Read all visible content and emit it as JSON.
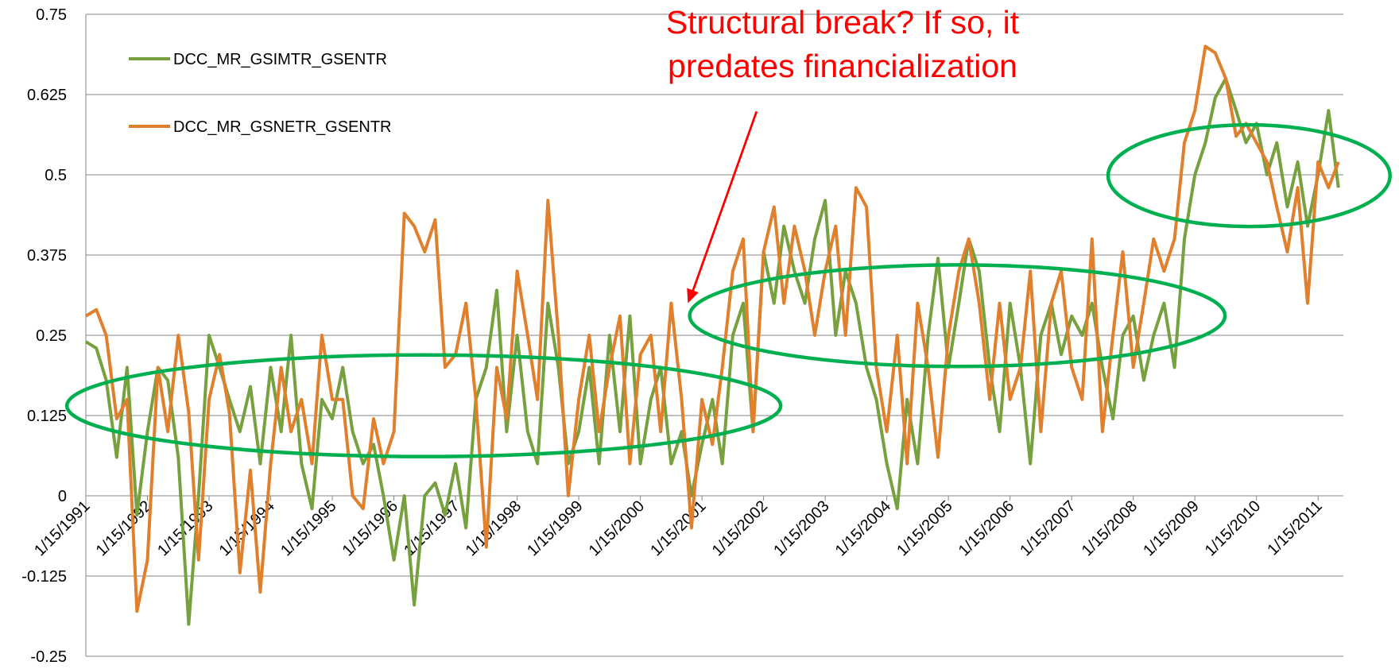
{
  "chart_data": {
    "type": "line",
    "annotation": [
      "Structural break? If so, it",
      "predates financialization"
    ],
    "x": [
      1991.04,
      1991.21,
      1991.37,
      1991.54,
      1991.71,
      1991.87,
      1992.04,
      1992.21,
      1992.37,
      1992.54,
      1992.71,
      1992.87,
      1993.04,
      1993.21,
      1993.37,
      1993.54,
      1993.71,
      1993.87,
      1994.04,
      1994.21,
      1994.37,
      1994.54,
      1994.71,
      1994.87,
      1995.04,
      1995.21,
      1995.37,
      1995.54,
      1995.71,
      1995.87,
      1996.04,
      1996.21,
      1996.37,
      1996.54,
      1996.71,
      1996.87,
      1997.04,
      1997.21,
      1997.37,
      1997.54,
      1997.71,
      1997.87,
      1998.04,
      1998.21,
      1998.37,
      1998.54,
      1998.71,
      1998.87,
      1999.04,
      1999.21,
      1999.37,
      1999.54,
      1999.71,
      1999.87,
      2000.04,
      2000.21,
      2000.37,
      2000.54,
      2000.71,
      2000.87,
      2001.04,
      2001.21,
      2001.37,
      2001.54,
      2001.71,
      2001.87,
      2002.04,
      2002.21,
      2002.37,
      2002.54,
      2002.71,
      2002.87,
      2003.04,
      2003.21,
      2003.37,
      2003.54,
      2003.71,
      2003.87,
      2004.04,
      2004.21,
      2004.37,
      2004.54,
      2004.71,
      2004.87,
      2005.04,
      2005.21,
      2005.37,
      2005.54,
      2005.71,
      2005.87,
      2006.04,
      2006.21,
      2006.37,
      2006.54,
      2006.71,
      2006.87,
      2007.04,
      2007.21,
      2007.37,
      2007.54,
      2007.71,
      2007.87,
      2008.04,
      2008.21,
      2008.37,
      2008.54,
      2008.71,
      2008.87,
      2009.04,
      2009.21,
      2009.37,
      2009.54,
      2009.71,
      2009.87,
      2010.04,
      2010.21,
      2010.37,
      2010.54,
      2010.71,
      2010.87,
      2011.04,
      2011.21,
      2011.37
    ],
    "series": [
      {
        "name": "DCC_MR_GSIMTR_GSENTR",
        "color": "#77a03f",
        "values": [
          0.24,
          0.23,
          0.18,
          0.06,
          0.2,
          -0.03,
          0.1,
          0.2,
          0.18,
          0.06,
          -0.2,
          0.0,
          0.25,
          0.2,
          0.15,
          0.1,
          0.17,
          0.05,
          0.2,
          0.1,
          0.25,
          0.05,
          -0.02,
          0.15,
          0.12,
          0.2,
          0.1,
          0.05,
          0.08,
          0.0,
          -0.1,
          0.0,
          -0.17,
          0.0,
          0.02,
          -0.03,
          0.05,
          -0.05,
          0.15,
          0.2,
          0.32,
          0.1,
          0.25,
          0.1,
          0.05,
          0.3,
          0.2,
          0.05,
          0.1,
          0.2,
          0.05,
          0.25,
          0.1,
          0.28,
          0.05,
          0.15,
          0.2,
          0.05,
          0.1,
          0.0,
          0.08,
          0.15,
          0.05,
          0.25,
          0.3,
          0.1,
          0.38,
          0.3,
          0.42,
          0.35,
          0.3,
          0.4,
          0.46,
          0.25,
          0.35,
          0.3,
          0.2,
          0.15,
          0.05,
          -0.02,
          0.15,
          0.05,
          0.25,
          0.37,
          0.2,
          0.3,
          0.4,
          0.35,
          0.2,
          0.1,
          0.3,
          0.2,
          0.05,
          0.25,
          0.3,
          0.22,
          0.28,
          0.25,
          0.3,
          0.2,
          0.12,
          0.25,
          0.28,
          0.18,
          0.25,
          0.3,
          0.2,
          0.4,
          0.5,
          0.55,
          0.62,
          0.65,
          0.6,
          0.55,
          0.58,
          0.5,
          0.55,
          0.45,
          0.52,
          0.42,
          0.5,
          0.6,
          0.48
        ]
      },
      {
        "name": "DCC_MR_GSNETR_GSENTR",
        "color": "#e07f2c",
        "values": [
          0.28,
          0.29,
          0.25,
          0.12,
          0.15,
          -0.18,
          -0.1,
          0.2,
          0.1,
          0.25,
          0.13,
          -0.1,
          0.15,
          0.22,
          0.13,
          -0.12,
          0.04,
          -0.15,
          0.05,
          0.2,
          0.1,
          0.15,
          0.05,
          0.25,
          0.15,
          0.15,
          0.0,
          -0.02,
          0.12,
          0.05,
          0.1,
          0.44,
          0.42,
          0.38,
          0.43,
          0.2,
          0.22,
          0.3,
          0.15,
          -0.08,
          0.2,
          0.12,
          0.35,
          0.25,
          0.15,
          0.46,
          0.25,
          0.0,
          0.15,
          0.25,
          0.1,
          0.2,
          0.28,
          0.05,
          0.22,
          0.25,
          0.1,
          0.3,
          0.15,
          -0.05,
          0.15,
          0.08,
          0.2,
          0.35,
          0.4,
          0.1,
          0.38,
          0.45,
          0.3,
          0.42,
          0.35,
          0.25,
          0.35,
          0.42,
          0.25,
          0.48,
          0.45,
          0.2,
          0.1,
          0.25,
          0.05,
          0.3,
          0.2,
          0.06,
          0.25,
          0.35,
          0.4,
          0.3,
          0.15,
          0.3,
          0.15,
          0.2,
          0.35,
          0.1,
          0.3,
          0.35,
          0.2,
          0.15,
          0.4,
          0.1,
          0.25,
          0.38,
          0.2,
          0.3,
          0.4,
          0.35,
          0.4,
          0.55,
          0.6,
          0.7,
          0.69,
          0.65,
          0.56,
          0.58,
          0.55,
          0.52,
          0.45,
          0.38,
          0.48,
          0.3,
          0.52,
          0.48,
          0.52
        ]
      }
    ],
    "xlim": [
      1991.04,
      2011.45
    ],
    "xticks": [
      {
        "value": 1991.04,
        "label": "1/15/1991"
      },
      {
        "value": 1992.04,
        "label": "1/15/1992"
      },
      {
        "value": 1993.04,
        "label": "1/15/1993"
      },
      {
        "value": 1994.04,
        "label": "1/15/1994"
      },
      {
        "value": 1995.04,
        "label": "1/15/1995"
      },
      {
        "value": 1996.04,
        "label": "1/15/1996"
      },
      {
        "value": 1997.04,
        "label": "1/15/1997"
      },
      {
        "value": 1998.04,
        "label": "1/15/1998"
      },
      {
        "value": 1999.04,
        "label": "1/15/1999"
      },
      {
        "value": 2000.04,
        "label": "1/15/2000"
      },
      {
        "value": 2001.04,
        "label": "1/15/2001"
      },
      {
        "value": 2002.04,
        "label": "1/15/2002"
      },
      {
        "value": 2003.04,
        "label": "1/15/2003"
      },
      {
        "value": 2004.04,
        "label": "1/15/2004"
      },
      {
        "value": 2005.04,
        "label": "1/15/2005"
      },
      {
        "value": 2006.04,
        "label": "1/15/2006"
      },
      {
        "value": 2007.04,
        "label": "1/15/2007"
      },
      {
        "value": 2008.04,
        "label": "1/15/2008"
      },
      {
        "value": 2009.04,
        "label": "1/15/2009"
      },
      {
        "value": 2010.04,
        "label": "1/15/2010"
      },
      {
        "value": 2011.04,
        "label": "1/15/2011"
      }
    ],
    "ylim": [
      -0.25,
      0.75
    ],
    "yticks": [
      -0.25,
      -0.125,
      0,
      0.125,
      0.25,
      0.375,
      0.5,
      0.625,
      0.75
    ],
    "grid": true,
    "legend": "upper-left"
  }
}
